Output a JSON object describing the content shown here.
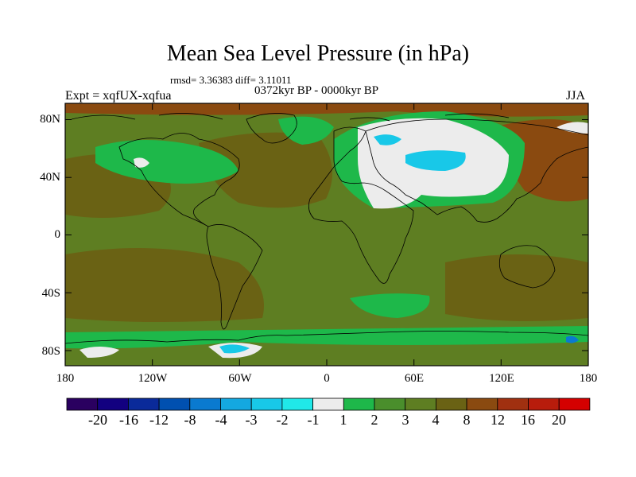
{
  "title": "Mean Sea Level Pressure (in hPa)",
  "stats": "rmsd= 3.36383  diff= 3.11011",
  "period": "0372kyr BP - 0000kyr BP",
  "experiment": "Expt = xqfUX-xqfua",
  "season": "JJA",
  "axes": {
    "lat_labels": [
      "80N",
      "40N",
      "0",
      "40S",
      "80S"
    ],
    "lon_labels": [
      "180",
      "120W",
      "60W",
      "0",
      "60E",
      "120E",
      "180"
    ]
  },
  "colorbar": {
    "labels": [
      "-20",
      "-16",
      "-12",
      "-8",
      "-4",
      "-3",
      "-2",
      "-1",
      "1",
      "2",
      "3",
      "4",
      "8",
      "12",
      "16",
      "20"
    ],
    "colors": [
      "#2a0060",
      "#120080",
      "#0a2a9a",
      "#0050b0",
      "#0a7ad0",
      "#14a8e0",
      "#18c8e8",
      "#20e8e8",
      "#ececec",
      "#1eb84a",
      "#4a8e2c",
      "#5e7e22",
      "#6a6214",
      "#8a4a10",
      "#a03010",
      "#b81c0c",
      "#d40000"
    ]
  },
  "map_colors": {
    "background": "#5e7e22",
    "positive_3_4": "#4a8e2c",
    "positive_2_3": "#1eb84a",
    "near_zero": "#ececec",
    "negative": "#18c8e8",
    "negative_strong": "#0a7ad0",
    "positive_8_12": "#6a6214",
    "positive_12_16": "#8a4a10",
    "coast": "#000000"
  }
}
